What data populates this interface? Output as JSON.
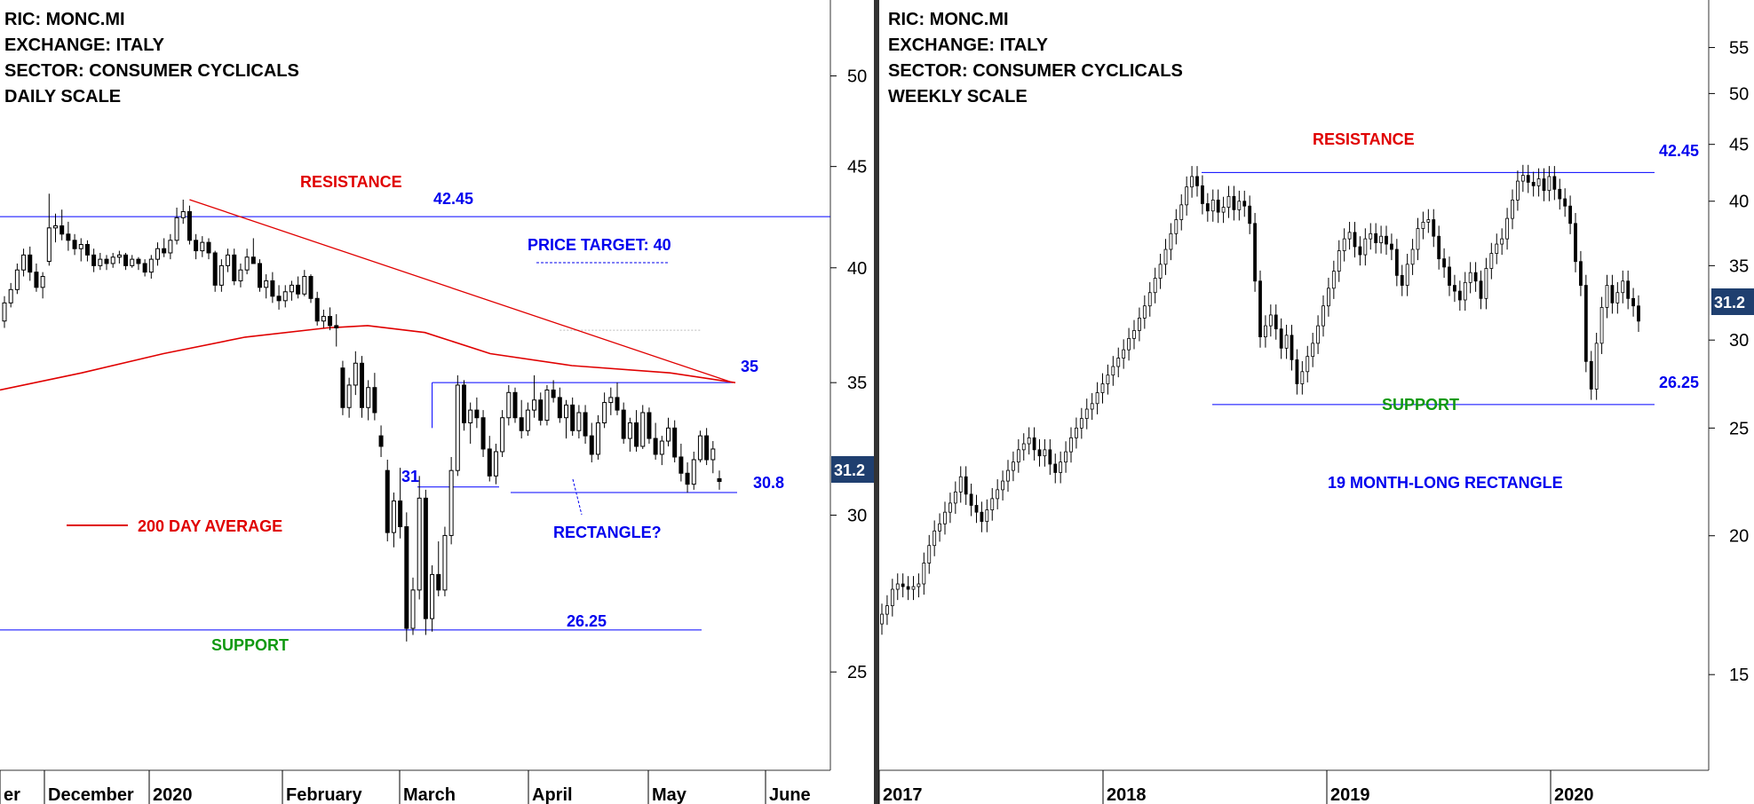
{
  "colors": {
    "background": "#ffffff",
    "candle": "#000000",
    "level_line": "#0000ff",
    "moving_average": "#e00000",
    "resistance_label": "#e00000",
    "support_label": "#119911",
    "annotation_blue": "#0000ee",
    "price_badge": "#1f3f6f",
    "divider": "#333333"
  },
  "chart_data": [
    {
      "type": "candlestick",
      "info_lines": [
        "RIC: MONC.MI",
        "EXCHANGE: ITALY",
        "SECTOR: CONSUMER CYCLICALS",
        "DAILY SCALE"
      ],
      "x_ticks": [
        "er",
        "December",
        "2020",
        "February",
        "March",
        "April",
        "May",
        "June"
      ],
      "y_ticks": [
        50,
        45,
        40,
        35,
        30,
        25
      ],
      "y_scale": "log",
      "y_range": [
        22.6,
        53.5
      ],
      "last_price_label": "31.2",
      "resistance": {
        "value": 42.45,
        "label": "RESISTANCE",
        "value_label": "42.45"
      },
      "support": {
        "value": 26.25,
        "label": "SUPPORT",
        "value_label": "26.25"
      },
      "price_target": {
        "label": "PRICE TARGET: 40",
        "value": 40
      },
      "rectangle": {
        "upper": 35,
        "lower": 30.8,
        "upper_label": "35",
        "lower_label": "30.8",
        "left_label": "31",
        "label": "RECTANGLE?"
      },
      "moving_average": {
        "label": "200 DAY AVERAGE",
        "series": [
          [
            0,
            34.7
          ],
          [
            0.1,
            35.4
          ],
          [
            0.2,
            36.2
          ],
          [
            0.3,
            36.9
          ],
          [
            0.4,
            37.3
          ],
          [
            0.45,
            37.4
          ],
          [
            0.52,
            37.1
          ],
          [
            0.6,
            36.2
          ],
          [
            0.7,
            35.7
          ],
          [
            0.82,
            35.4
          ],
          [
            0.9,
            35.0
          ]
        ]
      },
      "trendline": {
        "from": [
          0.0,
          43.3
        ],
        "to": [
          0.56,
          35.2
        ]
      },
      "candles": [
        {
          "o": 37.6,
          "h": 38.7,
          "l": 37.3,
          "c": 38.4
        },
        {
          "o": 38.4,
          "h": 39.3,
          "l": 38.2,
          "c": 39.0
        },
        {
          "o": 39.0,
          "h": 40.2,
          "l": 38.8,
          "c": 39.9
        },
        {
          "o": 39.9,
          "h": 40.9,
          "l": 39.6,
          "c": 40.6
        },
        {
          "o": 40.6,
          "h": 41.0,
          "l": 39.4,
          "c": 39.8
        },
        {
          "o": 39.8,
          "h": 40.2,
          "l": 38.9,
          "c": 39.1
        },
        {
          "o": 39.1,
          "h": 39.8,
          "l": 38.6,
          "c": 39.6
        },
        {
          "o": 40.3,
          "h": 43.6,
          "l": 40.1,
          "c": 41.9
        },
        {
          "o": 41.9,
          "h": 42.6,
          "l": 41.2,
          "c": 42.0
        },
        {
          "o": 42.0,
          "h": 42.8,
          "l": 41.3,
          "c": 41.6
        },
        {
          "o": 41.6,
          "h": 42.2,
          "l": 40.8,
          "c": 41.3
        },
        {
          "o": 41.3,
          "h": 41.6,
          "l": 40.6,
          "c": 40.9
        },
        {
          "o": 40.9,
          "h": 41.4,
          "l": 40.3,
          "c": 41.1
        },
        {
          "o": 41.1,
          "h": 41.3,
          "l": 40.3,
          "c": 40.6
        },
        {
          "o": 40.6,
          "h": 40.9,
          "l": 39.8,
          "c": 40.1
        },
        {
          "o": 40.1,
          "h": 40.7,
          "l": 39.9,
          "c": 40.4
        },
        {
          "o": 40.4,
          "h": 40.6,
          "l": 39.9,
          "c": 40.2
        },
        {
          "o": 40.2,
          "h": 40.7,
          "l": 40.0,
          "c": 40.5
        },
        {
          "o": 40.5,
          "h": 40.8,
          "l": 40.2,
          "c": 40.6
        },
        {
          "o": 40.6,
          "h": 40.7,
          "l": 39.9,
          "c": 40.1
        },
        {
          "o": 40.1,
          "h": 40.6,
          "l": 40.0,
          "c": 40.4
        },
        {
          "o": 40.4,
          "h": 40.5,
          "l": 39.9,
          "c": 40.2
        },
        {
          "o": 40.2,
          "h": 40.4,
          "l": 39.6,
          "c": 39.8
        },
        {
          "o": 39.8,
          "h": 40.6,
          "l": 39.5,
          "c": 40.4
        },
        {
          "o": 40.4,
          "h": 41.2,
          "l": 40.1,
          "c": 40.9
        },
        {
          "o": 40.9,
          "h": 41.4,
          "l": 40.5,
          "c": 40.7
        },
        {
          "o": 40.7,
          "h": 41.6,
          "l": 40.4,
          "c": 41.3
        },
        {
          "o": 41.3,
          "h": 42.9,
          "l": 41.1,
          "c": 42.4
        },
        {
          "o": 42.4,
          "h": 43.3,
          "l": 42.1,
          "c": 42.7
        },
        {
          "o": 42.7,
          "h": 43.0,
          "l": 41.1,
          "c": 41.3
        },
        {
          "o": 41.3,
          "h": 41.6,
          "l": 40.4,
          "c": 40.8
        },
        {
          "o": 40.8,
          "h": 41.5,
          "l": 40.5,
          "c": 41.2
        },
        {
          "o": 41.2,
          "h": 41.4,
          "l": 40.4,
          "c": 40.7
        },
        {
          "o": 40.7,
          "h": 40.8,
          "l": 38.9,
          "c": 39.2
        },
        {
          "o": 39.2,
          "h": 40.4,
          "l": 38.9,
          "c": 40.1
        },
        {
          "o": 40.1,
          "h": 40.9,
          "l": 39.8,
          "c": 40.6
        },
        {
          "o": 40.6,
          "h": 40.9,
          "l": 39.2,
          "c": 39.4
        },
        {
          "o": 39.4,
          "h": 40.2,
          "l": 39.1,
          "c": 39.9
        },
        {
          "o": 39.9,
          "h": 40.9,
          "l": 39.7,
          "c": 40.5
        },
        {
          "o": 40.5,
          "h": 41.4,
          "l": 40.2,
          "c": 40.2
        },
        {
          "o": 40.2,
          "h": 40.4,
          "l": 38.9,
          "c": 39.1
        },
        {
          "o": 39.1,
          "h": 39.7,
          "l": 38.6,
          "c": 39.4
        },
        {
          "o": 39.4,
          "h": 39.8,
          "l": 38.4,
          "c": 38.7
        },
        {
          "o": 38.7,
          "h": 39.2,
          "l": 38.1,
          "c": 38.5
        },
        {
          "o": 38.5,
          "h": 39.2,
          "l": 38.2,
          "c": 38.9
        },
        {
          "o": 38.9,
          "h": 39.4,
          "l": 38.5,
          "c": 39.2
        },
        {
          "o": 39.2,
          "h": 39.6,
          "l": 38.6,
          "c": 38.8
        },
        {
          "o": 38.8,
          "h": 39.9,
          "l": 38.7,
          "c": 39.6
        },
        {
          "o": 39.6,
          "h": 39.7,
          "l": 38.4,
          "c": 38.6
        },
        {
          "o": 38.6,
          "h": 38.9,
          "l": 37.4,
          "c": 37.6
        },
        {
          "o": 37.6,
          "h": 38.1,
          "l": 37.3,
          "c": 37.8
        },
        {
          "o": 37.8,
          "h": 38.2,
          "l": 37.2,
          "c": 37.4
        },
        {
          "o": 37.4,
          "h": 37.9,
          "l": 36.5,
          "c": 37.3
        },
        {
          "o": 35.6,
          "h": 35.9,
          "l": 33.7,
          "c": 34.0
        },
        {
          "o": 34.0,
          "h": 35.2,
          "l": 33.6,
          "c": 34.9
        },
        {
          "o": 34.9,
          "h": 36.3,
          "l": 34.5,
          "c": 35.8
        },
        {
          "o": 35.8,
          "h": 36.1,
          "l": 33.6,
          "c": 34.0
        },
        {
          "o": 34.0,
          "h": 35.1,
          "l": 33.5,
          "c": 34.8
        },
        {
          "o": 34.8,
          "h": 35.4,
          "l": 33.5,
          "c": 33.8
        },
        {
          "o": 32.9,
          "h": 33.3,
          "l": 32.1,
          "c": 32.5
        },
        {
          "o": 31.6,
          "h": 32.0,
          "l": 29.1,
          "c": 29.4
        },
        {
          "o": 29.4,
          "h": 30.8,
          "l": 28.9,
          "c": 30.5
        },
        {
          "o": 30.5,
          "h": 31.7,
          "l": 29.2,
          "c": 29.6
        },
        {
          "o": 29.6,
          "h": 30.1,
          "l": 25.9,
          "c": 26.3
        },
        {
          "o": 26.3,
          "h": 27.9,
          "l": 26.1,
          "c": 27.5
        },
        {
          "o": 27.5,
          "h": 31.4,
          "l": 27.2,
          "c": 30.6
        },
        {
          "o": 30.6,
          "h": 30.9,
          "l": 26.1,
          "c": 26.6
        },
        {
          "o": 26.6,
          "h": 28.3,
          "l": 26.2,
          "c": 28.0
        },
        {
          "o": 28.0,
          "h": 29.1,
          "l": 27.3,
          "c": 27.5
        },
        {
          "o": 27.5,
          "h": 29.6,
          "l": 27.3,
          "c": 29.3
        },
        {
          "o": 29.3,
          "h": 32.1,
          "l": 29.0,
          "c": 31.6
        },
        {
          "o": 31.6,
          "h": 35.3,
          "l": 31.4,
          "c": 34.9
        },
        {
          "o": 34.9,
          "h": 35.1,
          "l": 33.1,
          "c": 33.4
        },
        {
          "o": 33.4,
          "h": 34.2,
          "l": 32.6,
          "c": 33.9
        },
        {
          "o": 33.9,
          "h": 34.4,
          "l": 33.2,
          "c": 33.6
        },
        {
          "o": 33.6,
          "h": 33.9,
          "l": 32.1,
          "c": 32.4
        },
        {
          "o": 32.4,
          "h": 32.9,
          "l": 31.2,
          "c": 31.4
        },
        {
          "o": 31.4,
          "h": 32.6,
          "l": 31.1,
          "c": 32.3
        },
        {
          "o": 32.3,
          "h": 33.9,
          "l": 32.1,
          "c": 33.6
        },
        {
          "o": 33.6,
          "h": 34.9,
          "l": 33.3,
          "c": 34.6
        },
        {
          "o": 34.6,
          "h": 34.8,
          "l": 33.4,
          "c": 33.6
        },
        {
          "o": 33.6,
          "h": 34.3,
          "l": 32.8,
          "c": 33.1
        },
        {
          "o": 33.1,
          "h": 34.2,
          "l": 32.9,
          "c": 33.9
        },
        {
          "o": 33.9,
          "h": 35.3,
          "l": 33.6,
          "c": 34.3
        },
        {
          "o": 34.3,
          "h": 34.6,
          "l": 33.3,
          "c": 33.5
        },
        {
          "o": 33.5,
          "h": 34.9,
          "l": 33.3,
          "c": 34.7
        },
        {
          "o": 34.7,
          "h": 35.1,
          "l": 34.2,
          "c": 34.4
        },
        {
          "o": 34.4,
          "h": 34.8,
          "l": 33.4,
          "c": 33.6
        },
        {
          "o": 33.6,
          "h": 34.3,
          "l": 32.8,
          "c": 34.1
        },
        {
          "o": 34.1,
          "h": 34.4,
          "l": 32.9,
          "c": 33.1
        },
        {
          "o": 33.1,
          "h": 34.1,
          "l": 32.8,
          "c": 33.8
        },
        {
          "o": 33.8,
          "h": 34.1,
          "l": 32.6,
          "c": 32.9
        },
        {
          "o": 32.9,
          "h": 33.4,
          "l": 31.9,
          "c": 32.2
        },
        {
          "o": 32.2,
          "h": 33.7,
          "l": 32.0,
          "c": 33.4
        },
        {
          "o": 33.4,
          "h": 34.6,
          "l": 33.2,
          "c": 34.2
        },
        {
          "o": 34.2,
          "h": 34.8,
          "l": 33.7,
          "c": 34.4
        },
        {
          "o": 34.4,
          "h": 35.0,
          "l": 33.7,
          "c": 33.9
        },
        {
          "o": 33.9,
          "h": 34.2,
          "l": 32.6,
          "c": 32.8
        },
        {
          "o": 32.8,
          "h": 33.6,
          "l": 32.3,
          "c": 33.4
        },
        {
          "o": 33.4,
          "h": 33.9,
          "l": 32.3,
          "c": 32.5
        },
        {
          "o": 32.5,
          "h": 34.1,
          "l": 32.4,
          "c": 33.8
        },
        {
          "o": 33.8,
          "h": 34.0,
          "l": 32.6,
          "c": 32.8
        },
        {
          "o": 32.8,
          "h": 33.4,
          "l": 32.0,
          "c": 32.2
        },
        {
          "o": 32.2,
          "h": 32.9,
          "l": 31.8,
          "c": 32.7
        },
        {
          "o": 32.7,
          "h": 33.6,
          "l": 32.5,
          "c": 33.2
        },
        {
          "o": 33.2,
          "h": 33.5,
          "l": 31.9,
          "c": 32.1
        },
        {
          "o": 32.1,
          "h": 32.6,
          "l": 31.2,
          "c": 31.5
        },
        {
          "o": 31.5,
          "h": 31.9,
          "l": 30.8,
          "c": 31.1
        },
        {
          "o": 31.1,
          "h": 32.3,
          "l": 30.9,
          "c": 32.0
        },
        {
          "o": 32.0,
          "h": 33.1,
          "l": 31.9,
          "c": 32.9
        },
        {
          "o": 32.9,
          "h": 33.2,
          "l": 31.8,
          "c": 32.0
        },
        {
          "o": 32.0,
          "h": 32.7,
          "l": 31.5,
          "c": 32.4
        },
        {
          "o": 31.3,
          "h": 31.6,
          "l": 30.9,
          "c": 31.2
        }
      ]
    },
    {
      "type": "candlestick",
      "info_lines": [
        "RIC: MONC.MI",
        "EXCHANGE: ITALY",
        "SECTOR: CONSUMER CYCLICALS",
        "WEEKLY SCALE"
      ],
      "x_ticks": [
        "2017",
        "2018",
        "2019",
        "2020"
      ],
      "y_ticks": [
        55,
        50,
        45,
        40,
        35,
        30,
        25,
        20,
        15
      ],
      "y_scale": "log",
      "y_range": [
        12.6,
        58.5
      ],
      "last_price_label": "31.2",
      "resistance": {
        "value": 42.45,
        "label": "RESISTANCE",
        "value_label": "42.45"
      },
      "support": {
        "value": 26.25,
        "label": "SUPPORT",
        "value_label": "26.25"
      },
      "pattern_label": "19 MONTH-LONG RECTANGLE",
      "candles_close": [
        17.0,
        17.3,
        17.9,
        18.1,
        18.0,
        17.9,
        18.0,
        18.1,
        18.9,
        19.6,
        20.2,
        20.5,
        21.0,
        21.4,
        21.9,
        22.6,
        21.8,
        21.3,
        21.0,
        20.6,
        21.1,
        21.6,
        22.0,
        22.4,
        22.9,
        23.3,
        23.9,
        24.2,
        24.5,
        23.9,
        23.6,
        23.9,
        23.2,
        22.8,
        23.3,
        23.8,
        24.5,
        25.0,
        25.5,
        26.0,
        26.3,
        26.9,
        27.4,
        27.9,
        28.4,
        28.9,
        29.4,
        30.1,
        30.6,
        31.4,
        32.2,
        33.1,
        34.1,
        35.1,
        36.2,
        37.4,
        38.5,
        39.7,
        41.2,
        42.1,
        41.3,
        39.8,
        39.2,
        40.1,
        39.1,
        39.5,
        40.4,
        39.3,
        40.0,
        39.6,
        38.2,
        33.9,
        30.2,
        30.9,
        31.6,
        30.7,
        29.5,
        30.3,
        28.8,
        27.4,
        28.1,
        29.0,
        29.8,
        30.9,
        32.2,
        33.4,
        34.6,
        36.1,
        37.0,
        37.5,
        36.4,
        35.8,
        37.0,
        37.4,
        36.7,
        37.2,
        36.6,
        36.2,
        34.3,
        33.6,
        35.1,
        36.2,
        37.8,
        38.3,
        38.5,
        37.2,
        35.5,
        34.9,
        33.6,
        33.2,
        32.6,
        33.8,
        34.5,
        33.9,
        32.7,
        34.8,
        35.9,
        36.6,
        37.0,
        38.6,
        40.1,
        41.7,
        42.2,
        41.6,
        41.3,
        41.9,
        40.9,
        42.1,
        41.0,
        40.2,
        39.6,
        38.2,
        35.3,
        33.6,
        28.7,
        27.1,
        29.8,
        32.1,
        33.6,
        32.4,
        33.1,
        33.9,
        32.7,
        32.2,
        31.2
      ]
    }
  ]
}
